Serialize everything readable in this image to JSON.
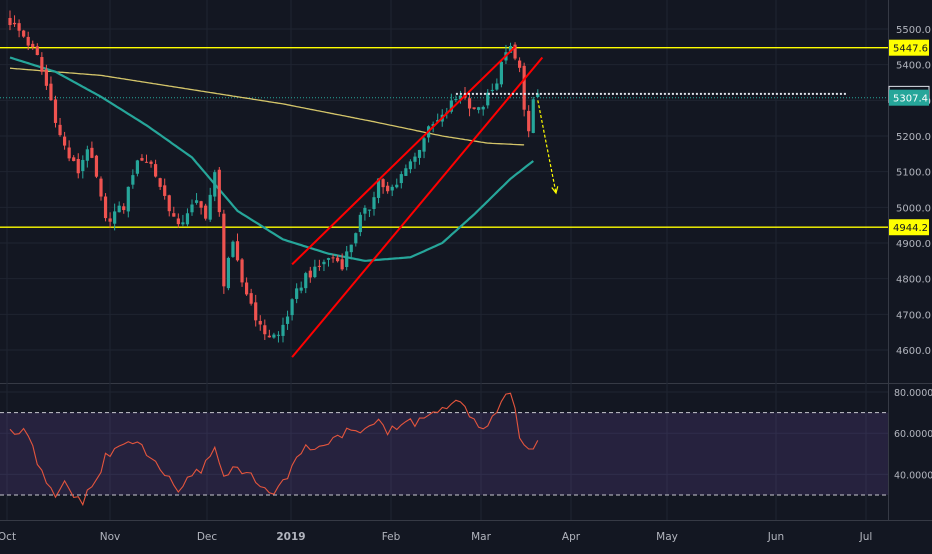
{
  "chart_data": [
    {
      "type": "candlestick",
      "title": "",
      "xlabel": "",
      "ylabel": "",
      "ylim": [
        4530,
        5560
      ],
      "grid": true,
      "x_ticks": [
        "Oct",
        "Nov",
        "Dec",
        "2019",
        "Feb",
        "Mar",
        "Apr",
        "May",
        "Jun",
        "Jul"
      ],
      "y_ticks": [
        "5500.0",
        "5400.0",
        "5300.0",
        "5200.0",
        "5100.0",
        "5000.0",
        "4900.0",
        "4800.0",
        "4700.0",
        "4600.0"
      ],
      "axis_label_colors": {
        "y_tick": "#b2b5be",
        "x_tick": "#b2b5be"
      },
      "colors": {
        "up": "#26a69a",
        "down": "#ef5350",
        "ma_fast": "#26a69a",
        "ma_slow": "#d4c56a",
        "levels": "#ffff00",
        "channel": "#ff0000",
        "projection": "#ffff00",
        "last_price": "#26a69a"
      },
      "anchors": [
        [
          0,
          5520
        ],
        [
          3,
          5480
        ],
        [
          6,
          5420
        ],
        [
          9,
          5300
        ],
        [
          11,
          5200
        ],
        [
          13,
          5140
        ],
        [
          15,
          5100
        ],
        [
          17,
          5170
        ],
        [
          19,
          5080
        ],
        [
          21,
          4960
        ],
        [
          23,
          4985
        ],
        [
          25,
          5000
        ],
        [
          27,
          5100
        ],
        [
          29,
          5140
        ],
        [
          31,
          5120
        ],
        [
          33,
          5060
        ],
        [
          35,
          5000
        ],
        [
          37,
          4940
        ],
        [
          39,
          4990
        ],
        [
          41,
          5010
        ],
        [
          43,
          4980
        ],
        [
          45,
          5090
        ],
        [
          46,
          4980
        ],
        [
          47,
          4790
        ],
        [
          48,
          4860
        ],
        [
          49,
          4890
        ],
        [
          50,
          4840
        ],
        [
          51,
          4790
        ],
        [
          53,
          4730
        ],
        [
          55,
          4660
        ],
        [
          57,
          4640
        ],
        [
          59,
          4640
        ],
        [
          61,
          4700
        ],
        [
          63,
          4760
        ],
        [
          65,
          4810
        ],
        [
          67,
          4820
        ],
        [
          69,
          4850
        ],
        [
          71,
          4860
        ],
        [
          73,
          4840
        ],
        [
          75,
          4900
        ],
        [
          77,
          4970
        ],
        [
          79,
          5000
        ],
        [
          81,
          5080
        ],
        [
          83,
          5040
        ],
        [
          85,
          5060
        ],
        [
          87,
          5120
        ],
        [
          89,
          5140
        ],
        [
          91,
          5200
        ],
        [
          93,
          5230
        ],
        [
          95,
          5250
        ],
        [
          97,
          5290
        ],
        [
          99,
          5320
        ],
        [
          101,
          5290
        ],
        [
          103,
          5270
        ],
        [
          105,
          5310
        ],
        [
          107,
          5340
        ],
        [
          108,
          5420
        ],
        [
          110,
          5440
        ],
        [
          112,
          5390
        ],
        [
          113,
          5270
        ],
        [
          114,
          5210
        ],
        [
          115,
          5290
        ],
        [
          116,
          5307.4
        ]
      ],
      "ma_fast_points": [
        [
          0,
          5420
        ],
        [
          10,
          5380
        ],
        [
          20,
          5310
        ],
        [
          30,
          5230
        ],
        [
          40,
          5140
        ],
        [
          50,
          4990
        ],
        [
          60,
          4910
        ],
        [
          70,
          4870
        ],
        [
          78,
          4850
        ],
        [
          88,
          4860
        ],
        [
          95,
          4900
        ],
        [
          102,
          4980
        ],
        [
          110,
          5080
        ],
        [
          115,
          5130
        ]
      ],
      "ma_slow_points": [
        [
          0,
          5390
        ],
        [
          20,
          5370
        ],
        [
          40,
          5330
        ],
        [
          60,
          5290
        ],
        [
          80,
          5240
        ],
        [
          95,
          5200
        ],
        [
          105,
          5180
        ],
        [
          113,
          5175
        ]
      ],
      "channel_lines": [
        {
          "from": [
            62,
            4840
          ],
          "to": [
            111,
            5450
          ]
        },
        {
          "from": [
            62,
            4580
          ],
          "to": [
            117,
            5420
          ]
        }
      ],
      "projection_line": {
        "from": [
          116,
          5300
        ],
        "to": [
          120,
          5040
        ]
      },
      "dotted_level": {
        "from": [
          98,
          5318
        ],
        "to": [
          184,
          5318
        ]
      },
      "last_price_line": 5307.4,
      "horizontal_levels": [
        5447.6,
        4944.2
      ],
      "price_labels": [
        {
          "text": "5447.6",
          "value": 5447.6,
          "style": "yellow"
        },
        {
          "text": "5316.7",
          "value": 5316.7,
          "style": "white"
        },
        {
          "text": "5307.4",
          "value": 5307.4,
          "style": "green"
        },
        {
          "text": "4944.2",
          "value": 4944.2,
          "style": "yellow"
        }
      ]
    },
    {
      "type": "line",
      "title": "",
      "name": "",
      "ylim": [
        25,
        82
      ],
      "y_ticks": [
        "80.0000",
        "60.0000",
        "40.0000"
      ],
      "band": [
        70,
        30
      ],
      "line_color": "#e4553d",
      "band_color": "#7e57c2",
      "anchors": [
        [
          0,
          60
        ],
        [
          3,
          61
        ],
        [
          5,
          52
        ],
        [
          8,
          35
        ],
        [
          10,
          28
        ],
        [
          12,
          36
        ],
        [
          14,
          30
        ],
        [
          16,
          27
        ],
        [
          18,
          33
        ],
        [
          21,
          48
        ],
        [
          24,
          53
        ],
        [
          27,
          57
        ],
        [
          29,
          52
        ],
        [
          31,
          48
        ],
        [
          34,
          40
        ],
        [
          37,
          33
        ],
        [
          40,
          38
        ],
        [
          43,
          45
        ],
        [
          45,
          55
        ],
        [
          47,
          38
        ],
        [
          50,
          45
        ],
        [
          52,
          40
        ],
        [
          55,
          35
        ],
        [
          57,
          30
        ],
        [
          59,
          32
        ],
        [
          61,
          40
        ],
        [
          63,
          50
        ],
        [
          65,
          52
        ],
        [
          68,
          54
        ],
        [
          71,
          57
        ],
        [
          74,
          60
        ],
        [
          77,
          62
        ],
        [
          79,
          64
        ],
        [
          81,
          67
        ],
        [
          83,
          60
        ],
        [
          85,
          62
        ],
        [
          87,
          66
        ],
        [
          89,
          65
        ],
        [
          91,
          68
        ],
        [
          93,
          70
        ],
        [
          95,
          71
        ],
        [
          97,
          73
        ],
        [
          99,
          75
        ],
        [
          101,
          67
        ],
        [
          103,
          63
        ],
        [
          105,
          65
        ],
        [
          107,
          68
        ],
        [
          108,
          75
        ],
        [
          110,
          78
        ],
        [
          111,
          72
        ],
        [
          112,
          60
        ],
        [
          113,
          52
        ],
        [
          114,
          50
        ],
        [
          116,
          56
        ]
      ]
    }
  ]
}
